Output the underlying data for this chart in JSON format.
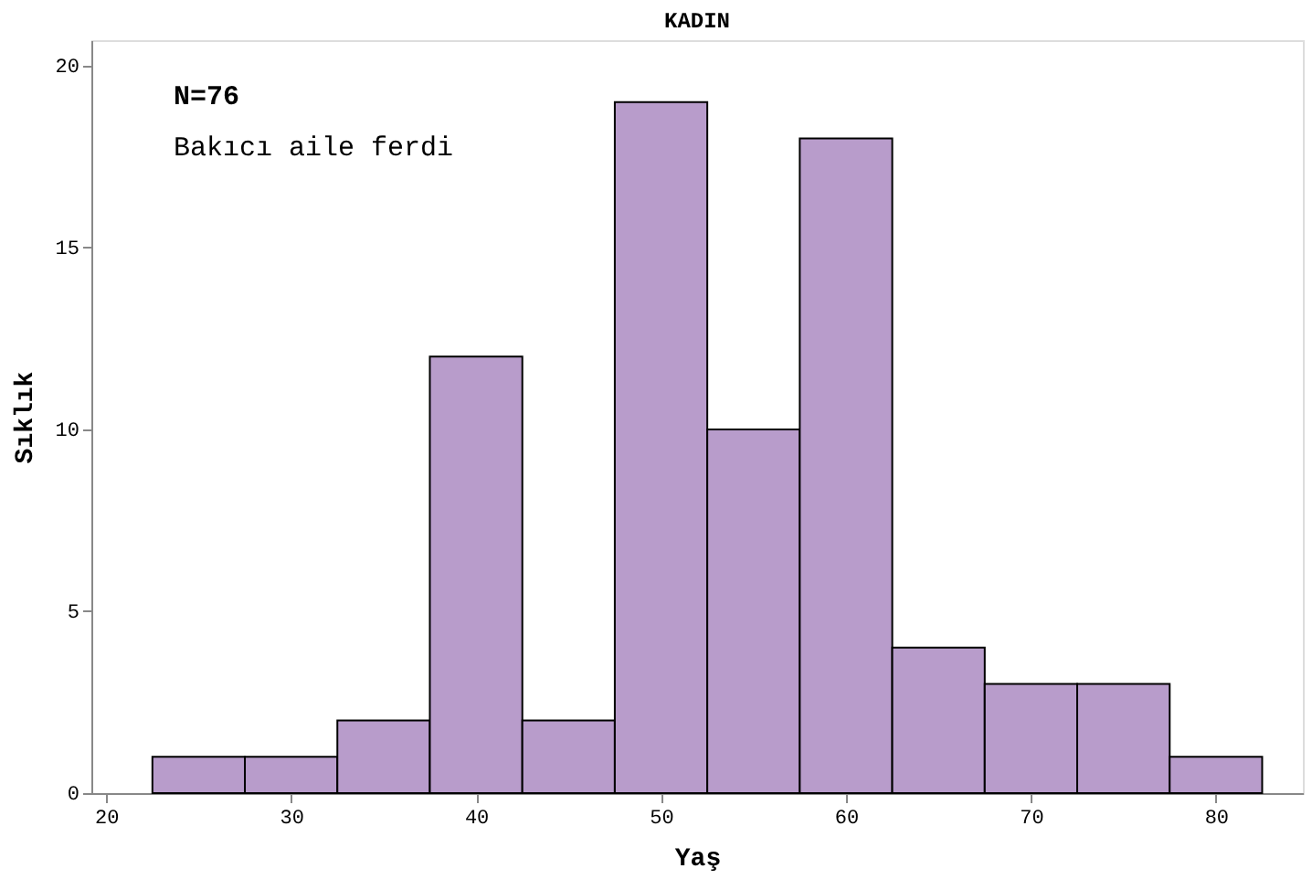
{
  "chart_data": {
    "type": "histogram",
    "title": "KADIN",
    "xlabel": "Yaş",
    "ylabel": "Sıklık",
    "bins": [
      22.5,
      27.5,
      32.5,
      37.5,
      42.5,
      47.5,
      52.5,
      57.5,
      62.5,
      67.5,
      72.5,
      77.5,
      82.5
    ],
    "values": [
      1,
      1,
      2,
      12,
      2,
      19,
      10,
      18,
      4,
      3,
      3,
      1
    ],
    "color": "#b89ccb",
    "xlim": [
      19.2,
      84.7
    ],
    "xticks": [
      20,
      30,
      40,
      50,
      60,
      70,
      80
    ],
    "ylim": [
      0,
      20.7
    ],
    "yticks": [
      0,
      5,
      10,
      15,
      20
    ],
    "annotations": [
      "N=76",
      "Bakıcı aile ferdi"
    ],
    "grid": false
  }
}
